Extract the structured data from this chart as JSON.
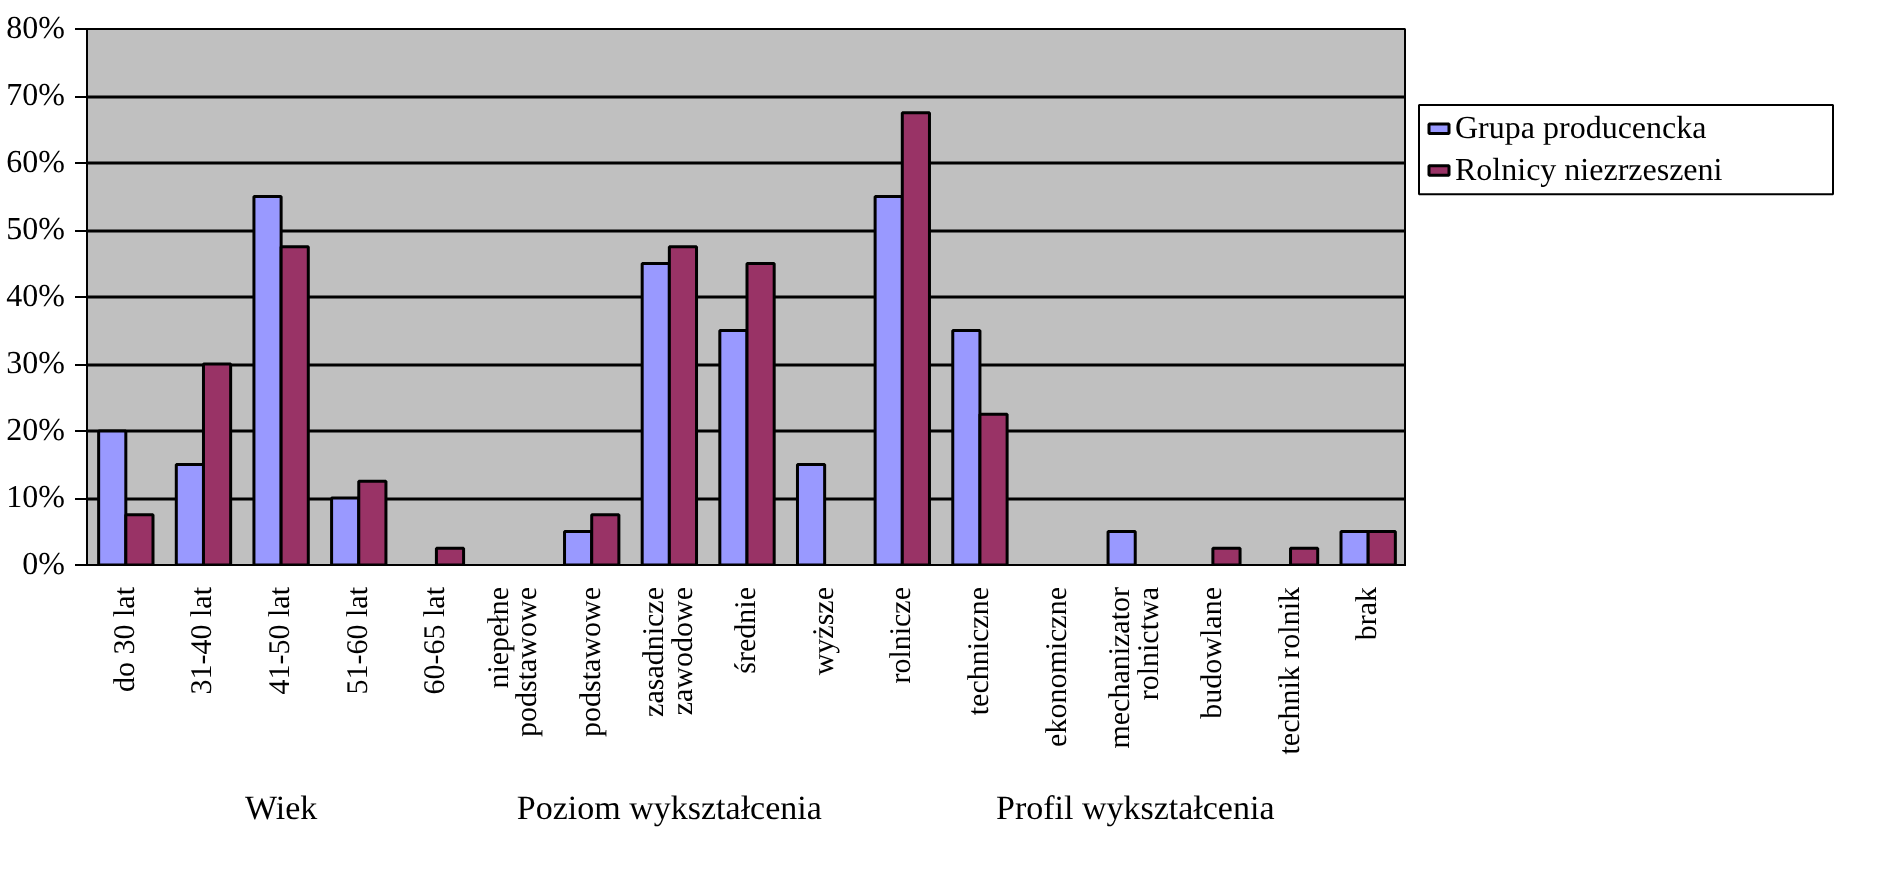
{
  "chart_data": {
    "type": "bar",
    "categories": [
      "do 30 lat",
      "31-40 lat",
      "41-50 lat",
      "51-60 lat",
      "60-65 lat",
      "niepełne\npodstawowe",
      "podstawowe",
      "zasadnicze\nzawodowe",
      "średnie",
      "wyższe",
      "rolnicze",
      "techniczne",
      "ekonomiczne",
      "mechanizator\nrolnictwa",
      "budowlane",
      "technik rolnik",
      "brak"
    ],
    "series": [
      {
        "name": "Grupa producencka",
        "color": "#9999ff",
        "values": [
          20,
          15,
          55,
          10,
          0,
          0,
          5,
          45,
          35,
          15,
          55,
          35,
          0,
          5,
          0,
          0,
          5
        ]
      },
      {
        "name": "Rolnicy niezrzeszeni",
        "color": "#993366",
        "values": [
          7.5,
          30,
          47.5,
          12.5,
          2.5,
          0,
          7.5,
          47.5,
          45,
          0,
          67.5,
          22.5,
          0,
          0,
          2.5,
          2.5,
          5
        ]
      }
    ],
    "annotations": [
      "Wiek",
      "Poziom wykształcenia",
      "Profil wykształcenia"
    ],
    "ylim": [
      0,
      80
    ],
    "yticks": [
      {
        "value": 0,
        "label": "0%"
      },
      {
        "value": 10,
        "label": "10%"
      },
      {
        "value": 20,
        "label": "20%"
      },
      {
        "value": 30,
        "label": "30%"
      },
      {
        "value": 40,
        "label": "40%"
      },
      {
        "value": 50,
        "label": "50%"
      },
      {
        "value": 60,
        "label": "60%"
      },
      {
        "value": 70,
        "label": "70%"
      },
      {
        "value": 80,
        "label": "80%"
      }
    ],
    "grid": "y",
    "legend": "right"
  }
}
